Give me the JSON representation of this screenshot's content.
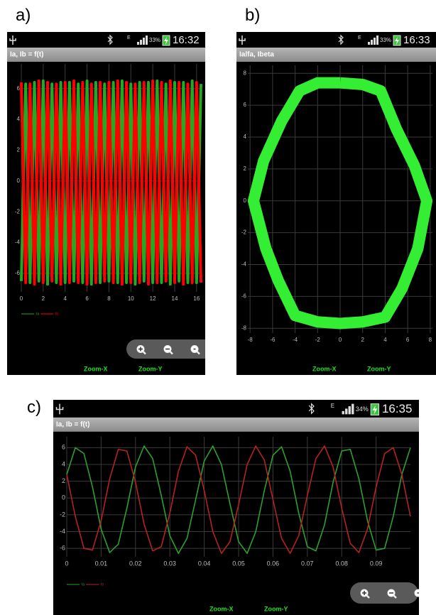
{
  "panels": [
    {
      "label": "a)",
      "network": "E",
      "battery": "33%",
      "time": "16:32",
      "title": "Ia, Ib = f(t)",
      "zoom_buttons": [
        "Zoom-X",
        "Zoom-Y"
      ]
    },
    {
      "label": "b)",
      "network": "E",
      "battery": "33%",
      "time": "16:33",
      "title": "Ialfa, Ibeta",
      "zoom_buttons": [
        "Zoom-X",
        "Zoom-Y"
      ]
    },
    {
      "label": "c)",
      "network": "E",
      "battery": "34%",
      "time": "16:35",
      "title": "Ia, Ib = f(t)",
      "zoom_buttons": [
        "Zoom-X",
        "Zoom-Y"
      ]
    }
  ],
  "chart_data": [
    {
      "type": "line",
      "grid": true,
      "x": [
        0,
        0.4,
        0.8,
        1.2,
        1.6,
        2,
        2.4,
        2.8,
        3.2,
        3.6,
        4,
        4.4,
        4.8,
        5.2,
        5.6,
        6,
        6.4,
        6.8,
        7.2,
        7.6,
        8,
        8.4,
        8.8,
        9.2,
        9.6,
        10,
        10.4,
        10.8,
        11.2,
        11.6,
        12,
        12.4,
        12.8,
        13.2,
        13.6,
        14,
        14.4,
        14.8,
        15.2,
        15.6,
        16,
        16.4
      ],
      "series": [
        {
          "name": "Ia",
          "color": "#22aa22",
          "values": [
            -6.5,
            6.3,
            -6.6,
            6.4,
            -6.5,
            6.5,
            -6.7,
            6.3,
            -6.6,
            6.4,
            -6.6,
            6.4,
            -6.5,
            6.3,
            -6.6,
            6.5,
            -6.7,
            6.4,
            -6.6,
            6.3,
            -6.5,
            6.4,
            -6.6,
            6.5,
            -6.6,
            6.3,
            -6.7,
            6.4,
            -6.5,
            6.4,
            -6.6,
            6.5,
            -6.6,
            6.3,
            -6.7,
            6.4,
            -6.5,
            6.4,
            -6.6,
            6.5,
            -6.6,
            6.3
          ]
        },
        {
          "name": "Ib",
          "color": "#ff0000",
          "values": [
            6.4,
            -6.6,
            6.3,
            -6.7,
            6.5,
            -6.6,
            6.4,
            -6.5,
            6.3,
            -6.7,
            6.4,
            -6.6,
            6.5,
            -6.6,
            6.4,
            -6.7,
            6.3,
            -6.6,
            6.4,
            -6.5,
            6.4,
            -6.6,
            6.5,
            -6.7,
            6.4,
            -6.6,
            6.3,
            -6.6,
            6.4,
            -6.7,
            6.5,
            -6.6,
            6.4,
            -6.5,
            6.5,
            -6.6,
            6.4,
            -6.7,
            6.3,
            -6.6,
            6.4,
            -6.6
          ]
        }
      ],
      "xlim": [
        0,
        16.4
      ],
      "xticks": [
        0,
        2,
        4,
        6,
        8,
        10,
        12,
        14,
        16
      ],
      "ylim": [
        -7.2,
        7.6
      ],
      "yticks": [
        -6,
        -4,
        -2,
        0,
        2,
        4,
        6
      ]
    },
    {
      "type": "line",
      "grid": true,
      "x": [
        0,
        2,
        3.6,
        5,
        6.6,
        7.7,
        6.9,
        5.5,
        4,
        2,
        0,
        -2,
        -4,
        -5.5,
        -6.6,
        -7.7,
        -6.8,
        -5.2,
        -3.6,
        -2,
        0
      ],
      "series": [
        {
          "color": "#33ee33",
          "values": [
            7.4,
            7.3,
            6.9,
            4.5,
            2.2,
            0,
            -3,
            -5.5,
            -7.3,
            -7.6,
            -7.7,
            -7.6,
            -7.2,
            -5,
            -3,
            0,
            2.5,
            5,
            6.9,
            7.4,
            7.4
          ]
        }
      ],
      "xlim": [
        -8.2,
        8.2
      ],
      "xticks": [
        -8,
        -6,
        -4,
        -2,
        0,
        2,
        4,
        6,
        8
      ],
      "ylim": [
        -8.3,
        8.5
      ],
      "yticks": [
        -8,
        -6,
        -4,
        -2,
        0,
        2,
        4,
        6,
        8
      ]
    },
    {
      "type": "line",
      "grid": true,
      "x": [
        0,
        0.0025,
        0.005,
        0.0075,
        0.01,
        0.0125,
        0.015,
        0.0175,
        0.02,
        0.0225,
        0.025,
        0.0275,
        0.03,
        0.0325,
        0.035,
        0.0375,
        0.04,
        0.0425,
        0.045,
        0.0475,
        0.05,
        0.0525,
        0.055,
        0.0575,
        0.06,
        0.0625,
        0.065,
        0.0675,
        0.07,
        0.0725,
        0.075,
        0.0775,
        0.08,
        0.0825,
        0.085,
        0.0875,
        0.09,
        0.0925,
        0.095,
        0.0975,
        0.1
      ],
      "series": [
        {
          "name": "Ia",
          "color": "#2e9e2e",
          "values": [
            2.8,
            6.0,
            5.3,
            1.3,
            -3.7,
            -6.5,
            -5.5,
            -1.2,
            3.7,
            6.2,
            4.7,
            0.3,
            -4.5,
            -6.6,
            -4.8,
            -0.2,
            4.4,
            6.2,
            4.0,
            -0.7,
            -5.2,
            -6.6,
            -4.0,
            0.9,
            5.1,
            6.1,
            3.2,
            -1.8,
            -5.8,
            -6.3,
            -3.2,
            1.9,
            5.6,
            5.8,
            2.3,
            -2.7,
            -6.2,
            -6.0,
            -2.2,
            2.8,
            6.0
          ]
        },
        {
          "name": "Ib",
          "color": "#b42222",
          "values": [
            2.8,
            -2.2,
            -6.0,
            -6.2,
            -2.7,
            2.3,
            5.8,
            5.6,
            1.9,
            -3.1,
            -6.3,
            -5.8,
            -1.8,
            3.2,
            6.1,
            5.1,
            0.9,
            -4.0,
            -6.6,
            -5.2,
            -0.8,
            4.0,
            6.2,
            4.5,
            -0.2,
            -4.8,
            -6.6,
            -4.5,
            0.3,
            4.7,
            6.2,
            3.7,
            -1.2,
            -5.4,
            -6.5,
            -3.7,
            1.3,
            5.3,
            6.0,
            2.8,
            -2.2
          ]
        }
      ],
      "xlim": [
        0,
        0.1
      ],
      "xticks": [
        0,
        0.01,
        0.02,
        0.03,
        0.04,
        0.05,
        0.06,
        0.07,
        0.08,
        0.09
      ],
      "ylim": [
        -7,
        7.3
      ],
      "yticks": [
        -6,
        -4,
        -2,
        0,
        2,
        4,
        6
      ]
    }
  ]
}
